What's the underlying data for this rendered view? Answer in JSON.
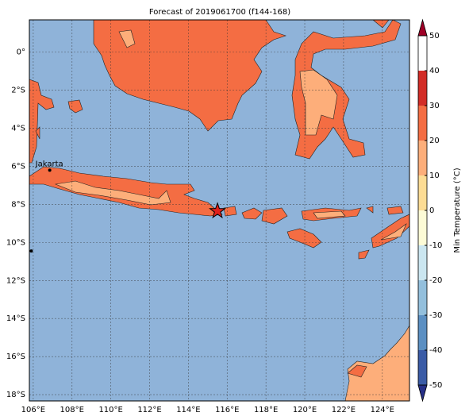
{
  "title": "Forecast of 2019061700 (f144-168)",
  "map": {
    "xlim": [
      105.8,
      125.4
    ],
    "ylim": [
      -18.33,
      1.7
    ],
    "xticks": [
      {
        "value": 106,
        "label": "106°E"
      },
      {
        "value": 108,
        "label": "108°E"
      },
      {
        "value": 110,
        "label": "110°E"
      },
      {
        "value": 112,
        "label": "112°E"
      },
      {
        "value": 114,
        "label": "114°E"
      },
      {
        "value": 116,
        "label": "116°E"
      },
      {
        "value": 118,
        "label": "118°E"
      },
      {
        "value": 120,
        "label": "120°E"
      },
      {
        "value": 122,
        "label": "122°E"
      },
      {
        "value": 124,
        "label": "124°E"
      }
    ],
    "yticks": [
      {
        "value": 0,
        "label": "0°"
      },
      {
        "value": -2,
        "label": "2°S"
      },
      {
        "value": -4,
        "label": "4°S"
      },
      {
        "value": -6,
        "label": "6°S"
      },
      {
        "value": -8,
        "label": "8°S"
      },
      {
        "value": -10,
        "label": "10°S"
      },
      {
        "value": -12,
        "label": "12°S"
      },
      {
        "value": -14,
        "label": "14°S"
      },
      {
        "value": -16,
        "label": "16°S"
      },
      {
        "value": -18,
        "label": "18°S"
      }
    ],
    "grid": true,
    "points": [
      {
        "lon": 106.85,
        "lat": -6.2,
        "label": "Jakarta"
      },
      {
        "lon": 105.9,
        "lat": -10.45
      }
    ],
    "star": {
      "lon": 115.5,
      "lat": -8.35
    }
  },
  "colorbar": {
    "label": "Min Temperature (°C)",
    "lim": [
      -50,
      50
    ],
    "ticks": [
      -50,
      -40,
      -30,
      -20,
      -10,
      0,
      10,
      20,
      30,
      40,
      50
    ],
    "colors": [
      "#262f87",
      "#3a5ba6",
      "#5b8fc2",
      "#93bfdc",
      "#cbe6f0",
      "#fdfbd6",
      "#fddc94",
      "#fdae7a",
      "#f46d43",
      "#d22c26",
      "#9e0026"
    ]
  }
}
